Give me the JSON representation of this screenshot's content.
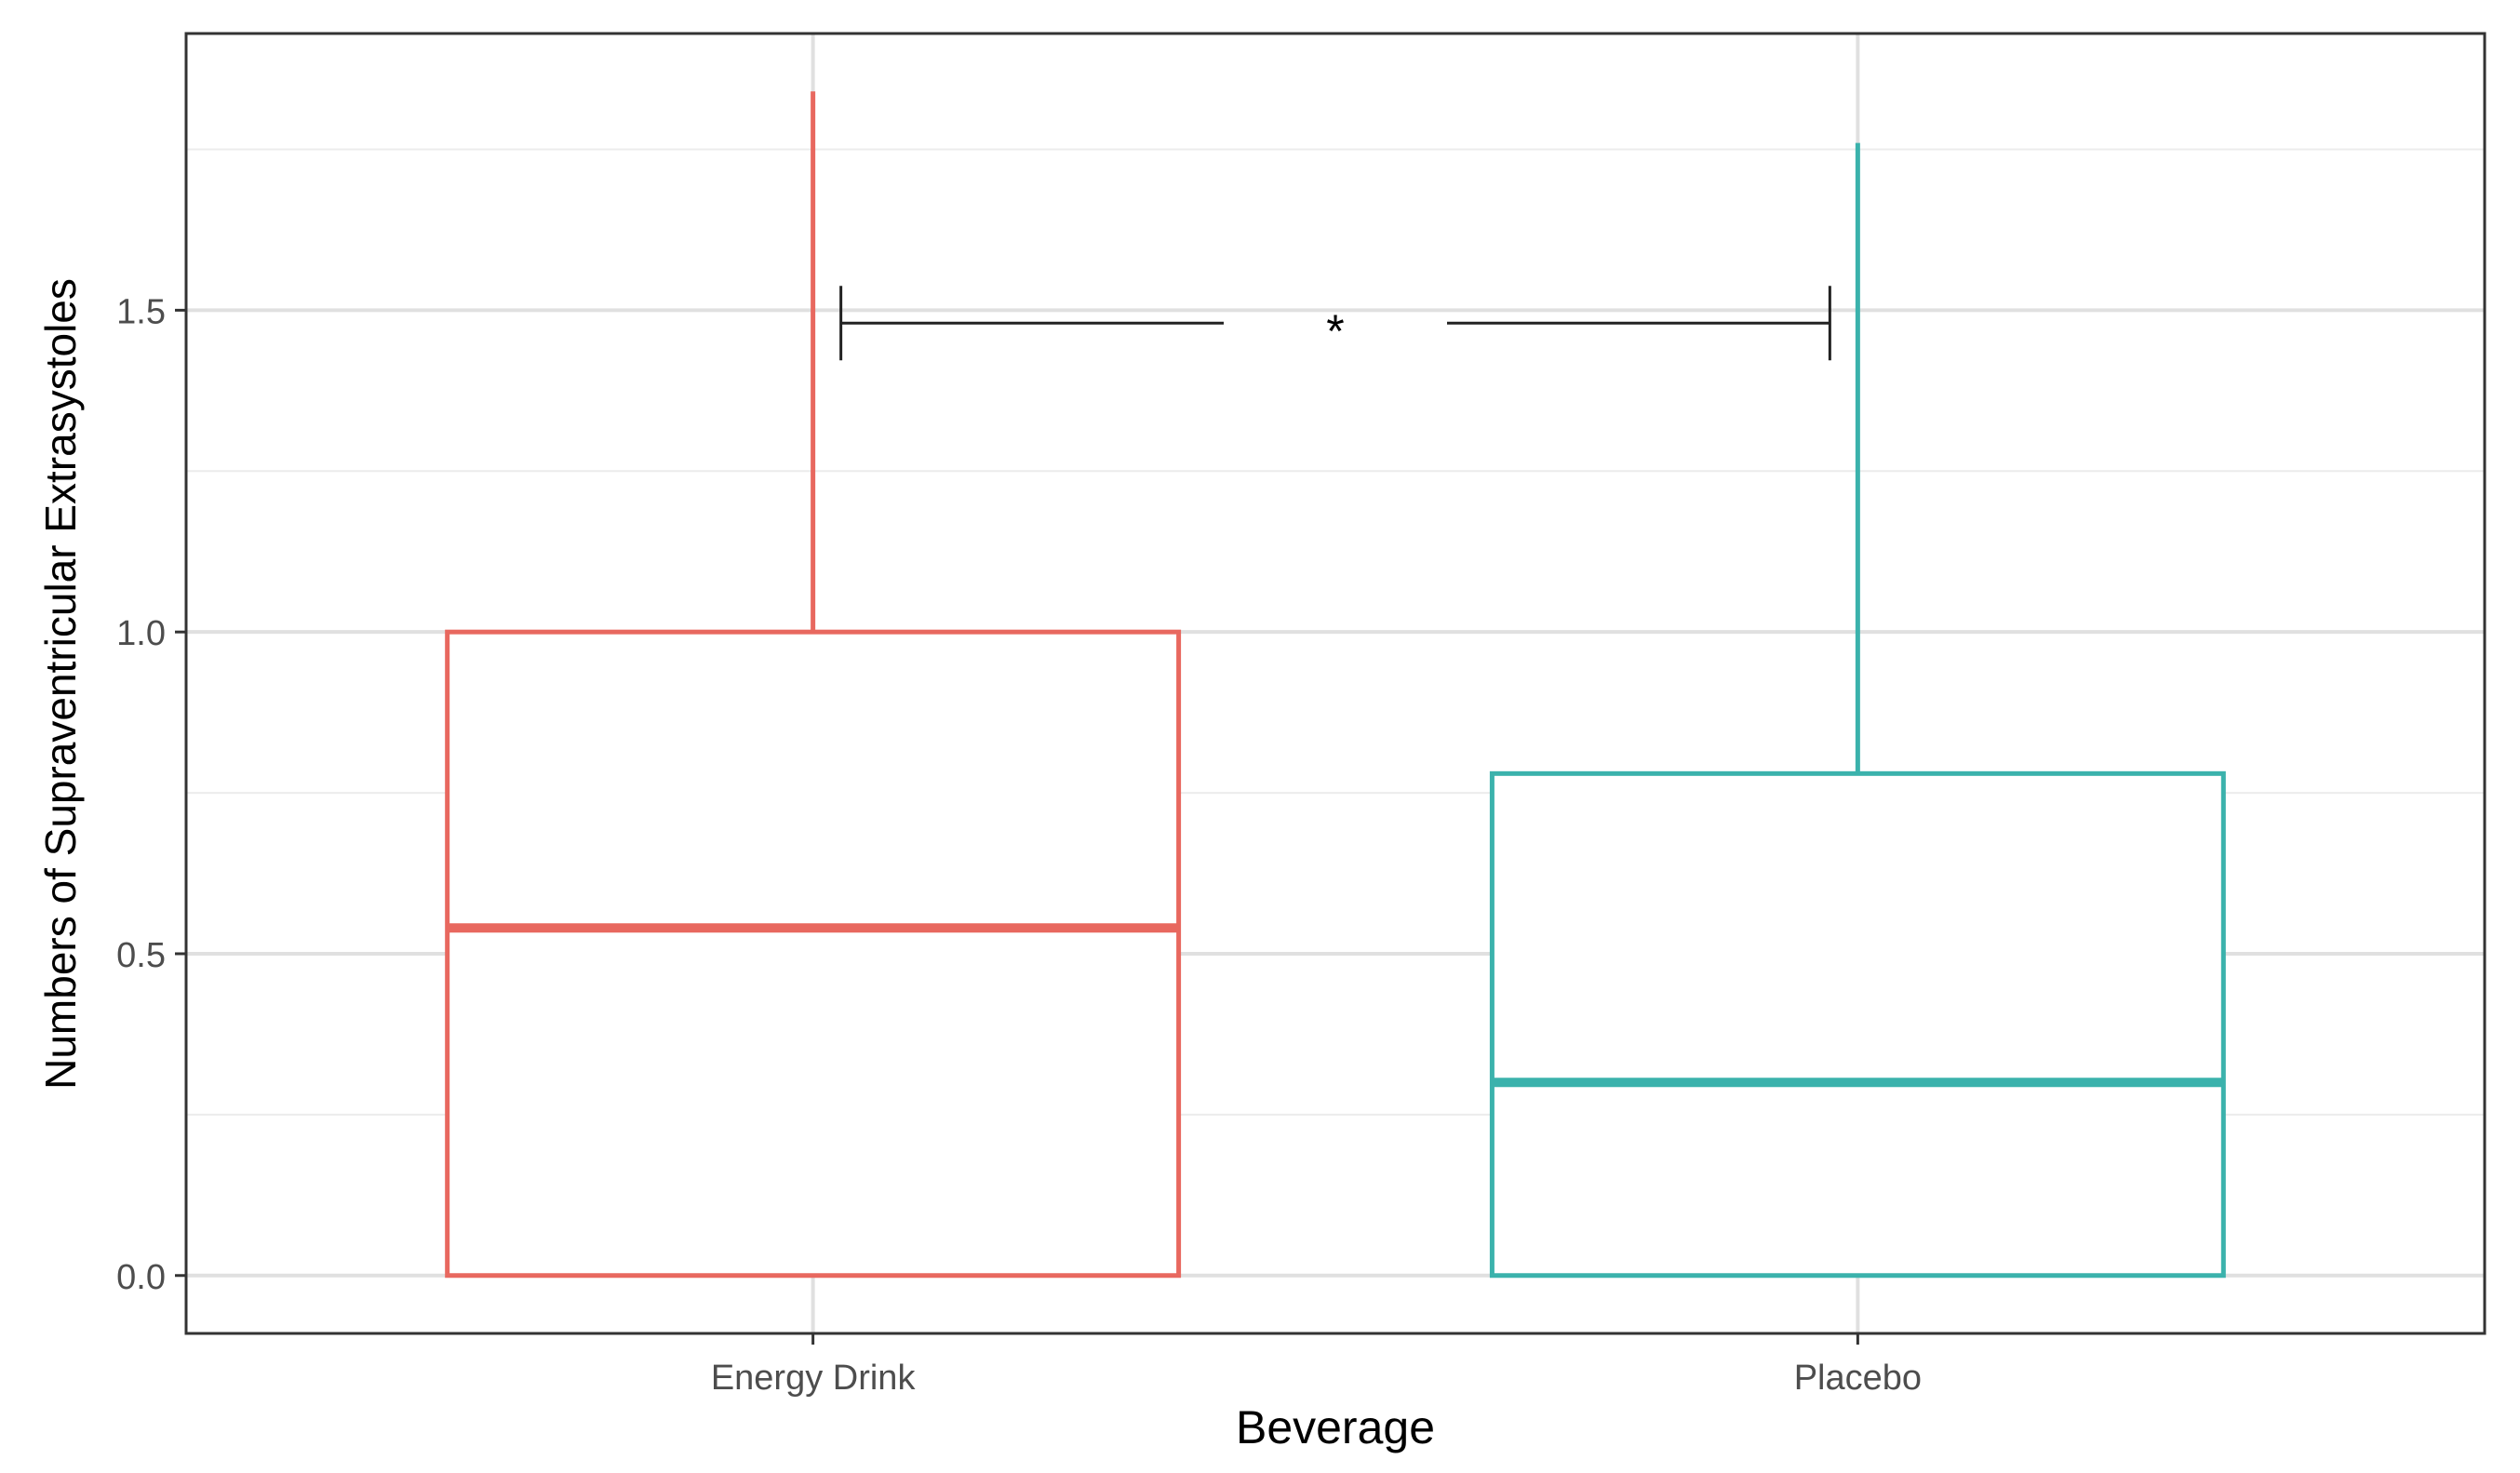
{
  "chart_data": {
    "type": "boxplot",
    "title": "",
    "xlabel": "Beverage",
    "ylabel": "Numbers of Supraventricular Extrasystoles",
    "categories": [
      "Energy Drink",
      "Placebo"
    ],
    "y_ticks": [
      0.0,
      0.5,
      1.0,
      1.5
    ],
    "y_tick_labels": [
      "0.0",
      "0.5",
      "1.0",
      "1.5"
    ],
    "ylim": [
      -0.09,
      1.93
    ],
    "grid": true,
    "series": [
      {
        "name": "Energy Drink",
        "min": 0.0,
        "q1": 0.0,
        "median": 0.54,
        "q3": 1.0,
        "max": 1.84,
        "color": "#E8685F"
      },
      {
        "name": "Placebo",
        "min": 0.0,
        "q1": 0.0,
        "median": 0.3,
        "q3": 0.78,
        "max": 1.76,
        "color": "#3BB2AC"
      }
    ],
    "annotations": [
      {
        "type": "significance-bracket",
        "label": "*",
        "from": "Energy Drink",
        "to": "Placebo",
        "y": 1.48
      }
    ]
  }
}
